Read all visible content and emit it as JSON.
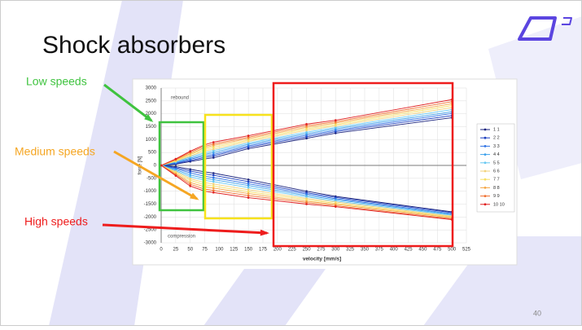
{
  "slide": {
    "title": "Shock absorbers",
    "page_number": "40",
    "callouts": [
      {
        "text": "Low speeds",
        "color": "#3fc33f"
      },
      {
        "text": "Medium speeds",
        "color": "#f5a623"
      },
      {
        "text": "High speeds",
        "color": "#ee1c1c"
      }
    ]
  },
  "chart_data": {
    "type": "line",
    "x_label": "velocity [mm/s]",
    "y_label": "force [N]",
    "annotations": [
      "rebound",
      "compression"
    ],
    "x": [
      0,
      25,
      50,
      75,
      90,
      150,
      250,
      300,
      500
    ],
    "xlim": [
      0,
      525
    ],
    "xticks": [
      0,
      25,
      50,
      75,
      100,
      125,
      150,
      175,
      200,
      225,
      250,
      275,
      300,
      325,
      350,
      375,
      400,
      425,
      450,
      475,
      500,
      525
    ],
    "ylim": [
      -3000,
      3000
    ],
    "yticks": [
      -3000,
      -2500,
      -2000,
      -1500,
      -1000,
      -500,
      0,
      500,
      1000,
      1500,
      2000,
      2500,
      3000
    ],
    "grid": true,
    "legend": "right",
    "series": [
      {
        "name": "1 1",
        "color": "#1a237e",
        "rebound": [
          0,
          50,
          150,
          250,
          300,
          650,
          1050,
          1250,
          1850
        ],
        "compression": [
          0,
          -50,
          -150,
          -250,
          -300,
          -550,
          -1000,
          -1200,
          -1800
        ]
      },
      {
        "name": "2 2",
        "color": "#1e40c0",
        "rebound": [
          0,
          70,
          190,
          310,
          370,
          710,
          1110,
          1310,
          1930
        ],
        "compression": [
          0,
          -90,
          -220,
          -330,
          -380,
          -630,
          -1060,
          -1240,
          -1830
        ]
      },
      {
        "name": "3 3",
        "color": "#2f72e4",
        "rebound": [
          0,
          90,
          240,
          370,
          430,
          760,
          1170,
          1360,
          2010
        ],
        "compression": [
          0,
          -130,
          -290,
          -420,
          -470,
          -710,
          -1110,
          -1290,
          -1870
        ]
      },
      {
        "name": "4 4",
        "color": "#3ea2ec",
        "rebound": [
          0,
          120,
          280,
          430,
          500,
          820,
          1230,
          1420,
          2080
        ],
        "compression": [
          0,
          -170,
          -370,
          -500,
          -550,
          -780,
          -1170,
          -1330,
          -1900
        ]
      },
      {
        "name": "5 5",
        "color": "#66c8f2",
        "rebound": [
          0,
          140,
          330,
          490,
          570,
          870,
          1290,
          1470,
          2160
        ],
        "compression": [
          0,
          -210,
          -440,
          -580,
          -630,
          -860,
          -1220,
          -1380,
          -1930
        ]
      },
      {
        "name": "6 6",
        "color": "#f2d27a",
        "rebound": [
          0,
          160,
          370,
          560,
          630,
          930,
          1360,
          1530,
          2240
        ],
        "compression": [
          0,
          -240,
          -510,
          -670,
          -720,
          -940,
          -1280,
          -1420,
          -1970
        ]
      },
      {
        "name": "7 7",
        "color": "#f7df63",
        "rebound": [
          0,
          180,
          420,
          620,
          700,
          980,
          1420,
          1580,
          2320
        ],
        "compression": [
          0,
          -280,
          -580,
          -750,
          -800,
          -1020,
          -1330,
          -1470,
          -2000
        ]
      },
      {
        "name": "8 8",
        "color": "#f5a745",
        "rebound": [
          0,
          210,
          460,
          680,
          770,
          1040,
          1480,
          1640,
          2390
        ],
        "compression": [
          0,
          -320,
          -660,
          -830,
          -880,
          -1090,
          -1390,
          -1510,
          -2030
        ]
      },
      {
        "name": "9 9",
        "color": "#f07030",
        "rebound": [
          0,
          230,
          510,
          740,
          830,
          1090,
          1540,
          1690,
          2470
        ],
        "compression": [
          0,
          -360,
          -730,
          -920,
          -970,
          -1170,
          -1440,
          -1560,
          -2070
        ]
      },
      {
        "name": "10 10",
        "color": "#e01e1e",
        "rebound": [
          0,
          250,
          550,
          800,
          900,
          1150,
          1600,
          1750,
          2550
        ],
        "compression": [
          0,
          -400,
          -800,
          -1000,
          -1050,
          -1250,
          -1500,
          -1600,
          -2100
        ]
      }
    ]
  }
}
